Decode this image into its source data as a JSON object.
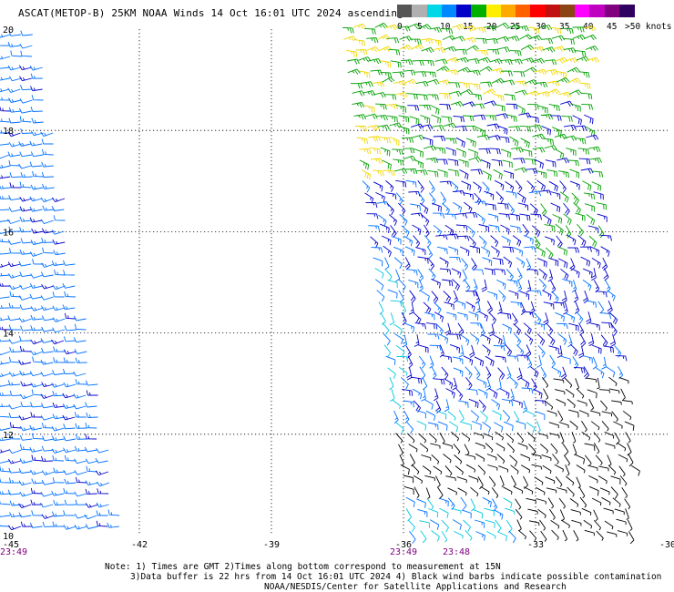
{
  "header": {
    "title": "ASCAT(METOP-B) 25KM NOAA Winds 14 Oct 16:01 UTC 2024 ascending"
  },
  "colorbar": {
    "colors": [
      "#555555",
      "#b0b0b0",
      "#00d8e8",
      "#0088ff",
      "#0000c8",
      "#00b000",
      "#ffee00",
      "#ffaa00",
      "#ff6000",
      "#ff0000",
      "#c01010",
      "#8b4513",
      "#ff00ff",
      "#c000c0",
      "#800080",
      "#300060"
    ],
    "labels": [
      "0",
      "5",
      "10",
      "15",
      "20",
      "25",
      "30",
      "35",
      "40",
      "45",
      ">50 knots"
    ]
  },
  "map": {
    "lon_labels": [
      "-45",
      "-42",
      "-39",
      "-36",
      "-33",
      "-30"
    ],
    "lat_labels": [
      "20",
      "18",
      "16",
      "14",
      "12",
      "10"
    ],
    "time_labels": [
      {
        "text": "23:49",
        "lon": -45
      },
      {
        "text": "23:49",
        "lon": -36
      },
      {
        "text": "23:48",
        "lon": -34.8
      }
    ],
    "lon_range": [
      -45,
      -30
    ],
    "lat_range": [
      10,
      20
    ],
    "grid": "dotted"
  },
  "footer": {
    "line1": "Note: 1) Times are GMT 2)Times along bottom correspond to measurement at 15N",
    "line2": "3)Data buffer is 22 hrs from 14 Oct 16:01 UTC 2024 4) Black wind barbs indicate possible contamination",
    "line3": "NOAA/NESDIS/Center for Satellite Applications and Research"
  }
}
